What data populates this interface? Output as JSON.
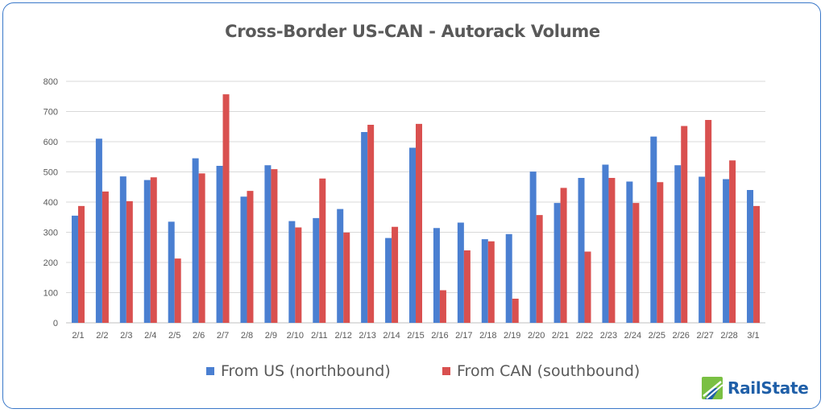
{
  "chart_data": {
    "type": "bar",
    "title": "Cross-Border US-CAN - Autorack Volume",
    "categories": [
      "2/1",
      "2/2",
      "2/3",
      "2/4",
      "2/5",
      "2/6",
      "2/7",
      "2/8",
      "2/9",
      "2/10",
      "2/11",
      "2/12",
      "2/13",
      "2/14",
      "2/15",
      "2/16",
      "2/17",
      "2/18",
      "2/19",
      "2/20",
      "2/21",
      "2/22",
      "2/23",
      "2/24",
      "2/25",
      "2/26",
      "2/27",
      "2/28",
      "3/1"
    ],
    "series": [
      {
        "name": "From US (northbound)",
        "color": "#4a7fd1",
        "values": [
          355,
          610,
          485,
          473,
          335,
          545,
          520,
          418,
          522,
          337,
          347,
          377,
          632,
          281,
          580,
          314,
          332,
          277,
          294,
          501,
          397,
          480,
          524,
          468,
          617,
          522,
          484,
          476,
          440
        ]
      },
      {
        "name": "From CAN (southbound)",
        "color": "#d9504f",
        "values": [
          387,
          435,
          403,
          482,
          213,
          495,
          757,
          437,
          509,
          316,
          478,
          299,
          656,
          318,
          659,
          108,
          240,
          270,
          80,
          357,
          447,
          236,
          480,
          397,
          466,
          652,
          672,
          538,
          387
        ]
      }
    ],
    "xlabel": "",
    "ylabel": "",
    "ylim": [
      0,
      800
    ],
    "yticks": [
      0,
      100,
      200,
      300,
      400,
      500,
      600,
      700,
      800
    ],
    "grid": true,
    "legend": "bottom"
  },
  "logo": {
    "text": "RailState",
    "icon": "railstate-logo-icon",
    "colors": [
      "#7ac043",
      "#1f5fa8"
    ]
  }
}
